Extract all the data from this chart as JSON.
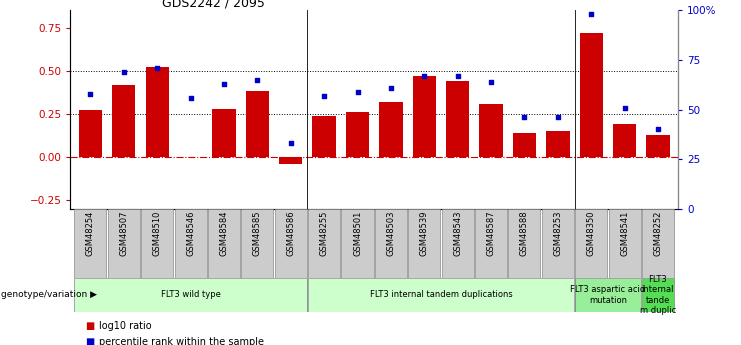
{
  "title": "GDS2242 / 2095",
  "categories": [
    "GSM48254",
    "GSM48507",
    "GSM48510",
    "GSM48546",
    "GSM48584",
    "GSM48585",
    "GSM48586",
    "GSM48255",
    "GSM48501",
    "GSM48503",
    "GSM48539",
    "GSM48543",
    "GSM48587",
    "GSM48588",
    "GSM48253",
    "GSM48350",
    "GSM48541",
    "GSM48252"
  ],
  "log10_ratio": [
    0.27,
    0.42,
    0.52,
    0.0,
    0.28,
    0.38,
    -0.04,
    0.24,
    0.26,
    0.32,
    0.47,
    0.44,
    0.31,
    0.14,
    0.15,
    0.72,
    0.19,
    0.13
  ],
  "percentile_rank": [
    58,
    69,
    71,
    56,
    63,
    65,
    33,
    57,
    59,
    61,
    67,
    67,
    64,
    46,
    46,
    98,
    51,
    40
  ],
  "bar_color": "#cc0000",
  "dot_color": "#0000cc",
  "ylim_left": [
    -0.3,
    0.85
  ],
  "ylim_right": [
    0,
    100
  ],
  "yticks_left": [
    -0.25,
    0.0,
    0.25,
    0.5,
    0.75
  ],
  "yticks_right": [
    0,
    25,
    50,
    75,
    100
  ],
  "ytick_labels_right": [
    "0",
    "25",
    "50",
    "75",
    "100%"
  ],
  "group_defs": [
    {
      "start": 0,
      "end": 6,
      "label": "FLT3 wild type",
      "color": "#ccffcc"
    },
    {
      "start": 7,
      "end": 14,
      "label": "FLT3 internal tandem duplications",
      "color": "#ccffcc"
    },
    {
      "start": 15,
      "end": 16,
      "label": "FLT3 aspartic acid\nmutation",
      "color": "#99ee99"
    },
    {
      "start": 17,
      "end": 17,
      "label": "FLT3\ninternal\ntande\nm duplic",
      "color": "#55dd55"
    }
  ],
  "genotype_label": "genotype/variation",
  "legend_items": [
    {
      "label": "log10 ratio",
      "color": "#cc0000"
    },
    {
      "label": "percentile rank within the sample",
      "color": "#0000cc"
    }
  ],
  "xtick_box_color": "#cccccc",
  "xtick_box_edge": "#888888"
}
